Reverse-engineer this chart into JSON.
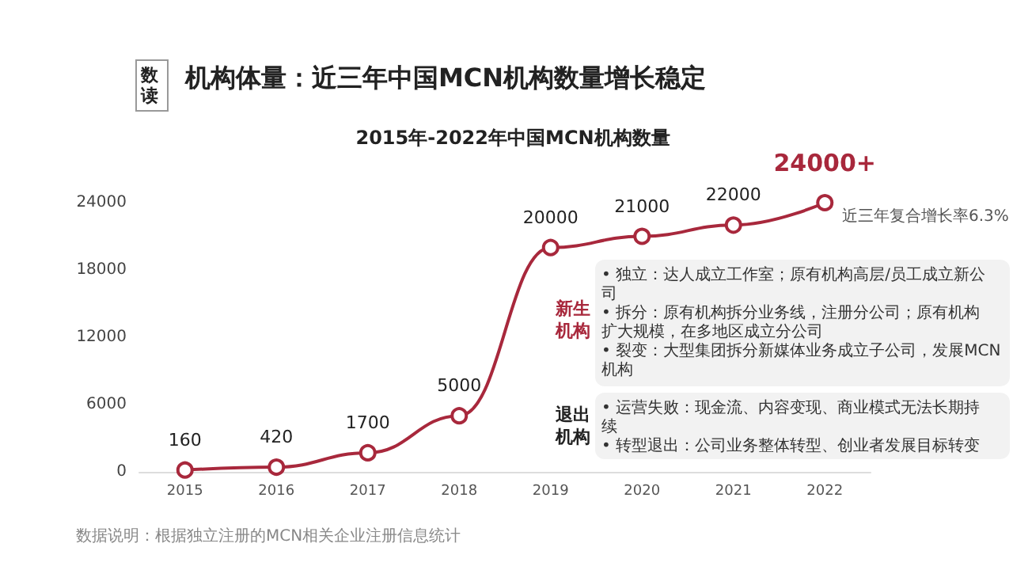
{
  "chart_data": {
    "type": "line",
    "title": "机构体量：近三年中国MCN机构数量增长稳定",
    "subtitle": "2015年-2022年中国MCN机构数量",
    "categories": [
      "2015",
      "2016",
      "2017",
      "2018",
      "2019",
      "2020",
      "2021",
      "2022"
    ],
    "series": [
      {
        "color": "#a8283c",
        "values": [
          160,
          420,
          1700,
          5000,
          20000,
          21000,
          22000,
          24000
        ],
        "value_labels": [
          "160",
          "420",
          "1700",
          "5000",
          "20000",
          "21000",
          "22000",
          "24000+"
        ]
      }
    ],
    "ylim": [
      0,
      24000
    ],
    "yticks": [
      0,
      6000,
      12000,
      18000,
      24000
    ],
    "grid": false,
    "marker": "circle",
    "line_style": "solid",
    "annotations": [
      "数读",
      "近三年复合增长率6.3%",
      "新生机构",
      "• 独立：达人成立工作室；原有机构高层/员工成立新公司",
      "• 拆分：原有机构拆分业务线，注册分公司；原有机构扩大规模，在多地区成立分公司",
      "• 裂变：大型集团拆分新媒体业务成立子公司，发展MCN机构",
      "退出机构",
      "• 运营失败：现金流、内容变现、商业模式无法长期持续",
      "• 转型退出：公司业务整体转型、创业者发展目标转变",
      "数据说明：根据独立注册的MCN相关企业注册信息统计"
    ]
  }
}
